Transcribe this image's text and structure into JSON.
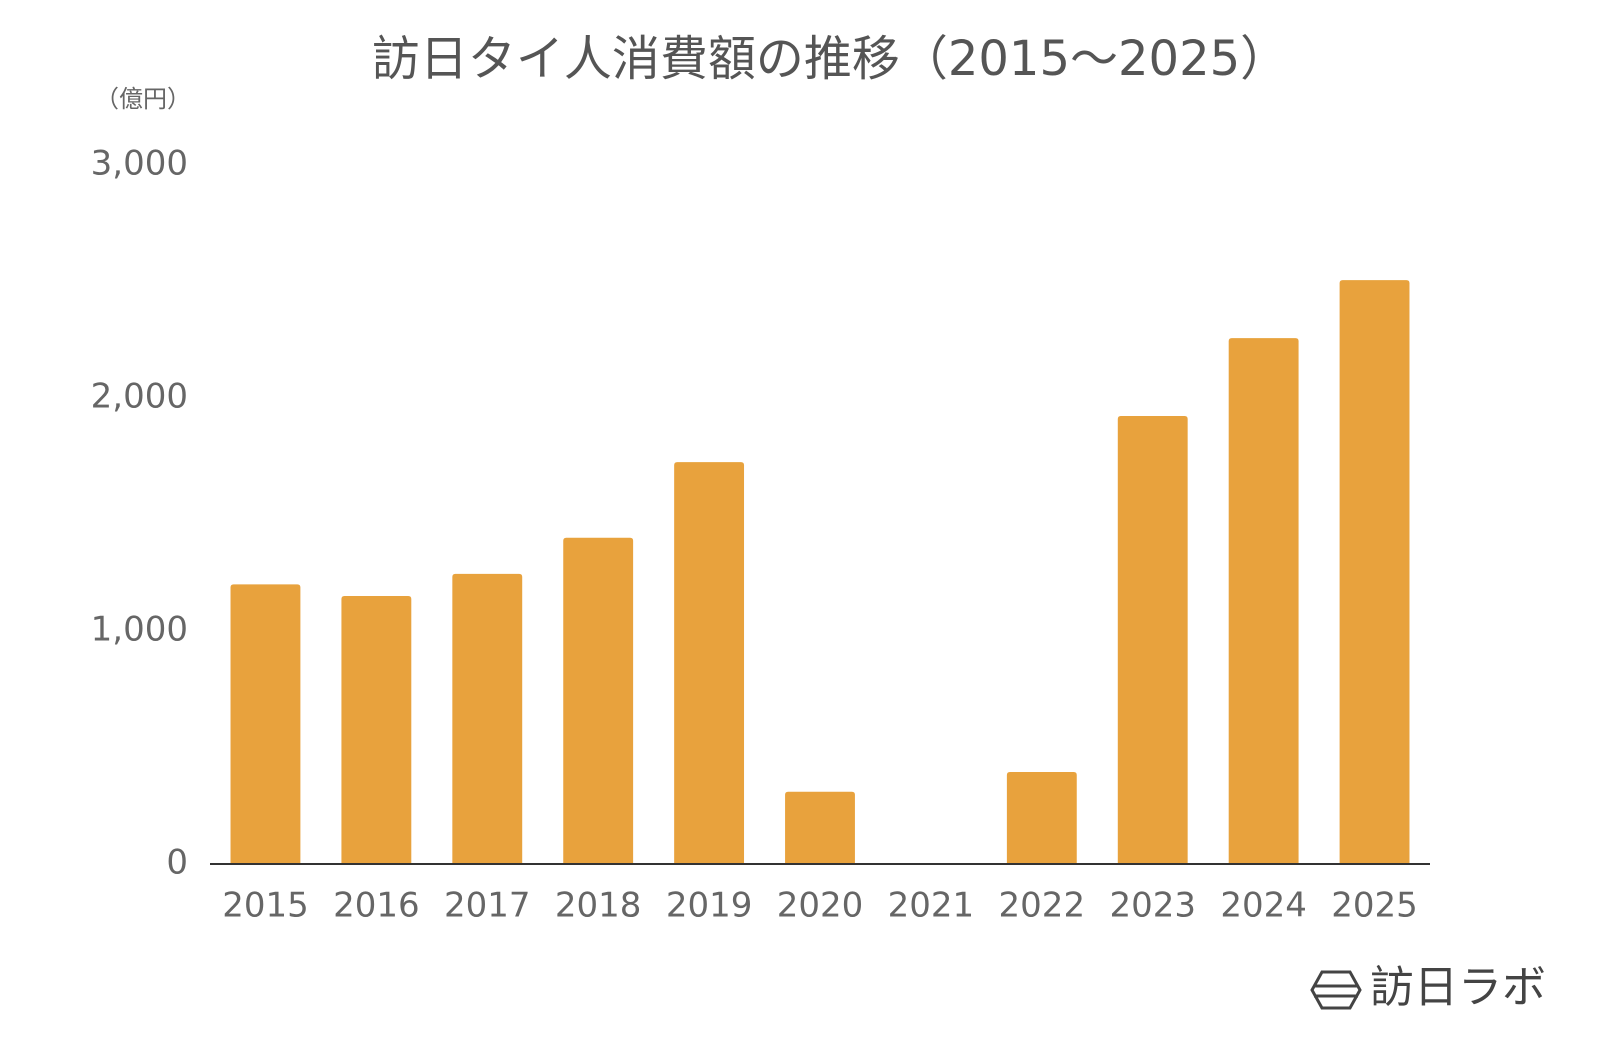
{
  "chart_data": {
    "type": "bar",
    "title": "訪日タイ人消費額の推移（2015〜2025）",
    "y_label": "（億円）",
    "watermark": "訪日ラボ",
    "categories": [
      "2015",
      "2016",
      "2017",
      "2018",
      "2019",
      "2020",
      "2021",
      "2022",
      "2023",
      "2024",
      "2025"
    ],
    "values": [
      1200,
      1150,
      1245,
      1400,
      1725,
      310,
      0,
      395,
      1923,
      2257,
      2506
    ],
    "color": "#e8a23d",
    "ylim": [
      0,
      3000
    ],
    "yticks": [
      0,
      {
        "value": 1000,
        "label": "1,000"
      },
      {
        "value": 2000,
        "label": "2,000"
      },
      {
        "value": 3000,
        "label": "3,000"
      }
    ],
    "grid": false
  }
}
